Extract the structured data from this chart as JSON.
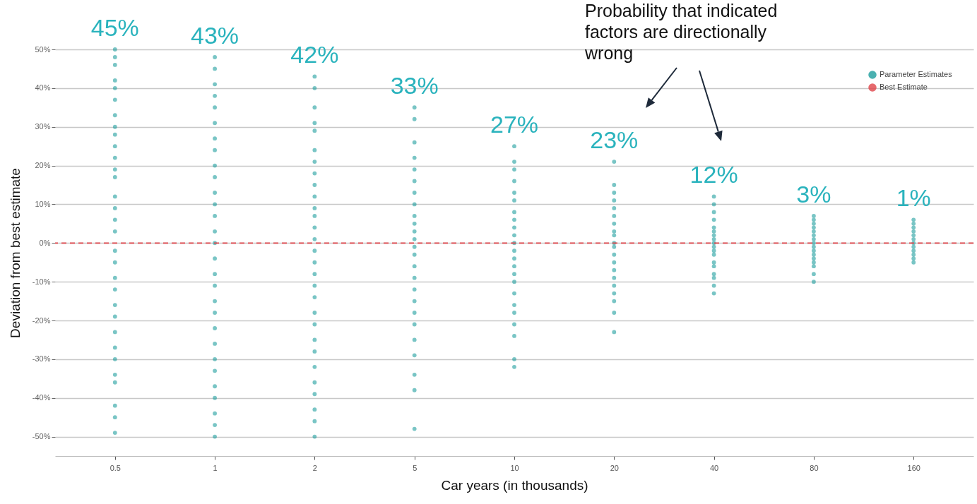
{
  "chart_data": {
    "type": "scatter",
    "xlabel": "Car years (in thousands)",
    "ylabel": "Deviation from best estimate",
    "categories": [
      "0.5",
      "1",
      "2",
      "5",
      "10",
      "20",
      "40",
      "80",
      "160"
    ],
    "ylim": [
      -55,
      50
    ],
    "yticks": [
      {
        "value": -50,
        "label": "-50%"
      },
      {
        "value": -40,
        "label": "-40%"
      },
      {
        "value": -30,
        "label": "-30%"
      },
      {
        "value": -20,
        "label": "-20%"
      },
      {
        "value": -10,
        "label": "-10%"
      },
      {
        "value": 0,
        "label": "0%"
      },
      {
        "value": 10,
        "label": "10%"
      },
      {
        "value": 20,
        "label": "20%"
      },
      {
        "value": 30,
        "label": "30%"
      },
      {
        "value": 40,
        "label": "40%"
      },
      {
        "value": 50,
        "label": "50%"
      }
    ],
    "grid": "y",
    "legend": "top right",
    "marker": "circle",
    "series": [
      {
        "name": "Parameter Estimates",
        "color": "#1f9e9e",
        "x": [
          "0.5",
          "0.5",
          "0.5",
          "0.5",
          "0.5",
          "0.5",
          "0.5",
          "0.5",
          "0.5",
          "0.5",
          "0.5",
          "0.5",
          "0.5",
          "0.5",
          "0.5",
          "0.5",
          "0.5",
          "0.5",
          "0.5",
          "0.5",
          "0.5",
          "0.5",
          "0.5",
          "0.5",
          "0.5",
          "0.5",
          "0.5",
          "0.5",
          "0.5",
          "0.5",
          "0.5",
          "1",
          "1",
          "1",
          "1",
          "1",
          "1",
          "1",
          "1",
          "1",
          "1",
          "1",
          "1",
          "1",
          "1",
          "1",
          "1",
          "1",
          "1",
          "1",
          "1",
          "1",
          "1",
          "1",
          "1",
          "1",
          "1",
          "1",
          "1",
          "1",
          "2",
          "2",
          "2",
          "2",
          "2",
          "2",
          "2",
          "2",
          "2",
          "2",
          "2",
          "2",
          "2",
          "2",
          "2",
          "2",
          "2",
          "2",
          "2",
          "2",
          "2",
          "2",
          "2",
          "2",
          "2",
          "2",
          "2",
          "2",
          "2",
          "5",
          "5",
          "5",
          "5",
          "5",
          "5",
          "5",
          "5",
          "5",
          "5",
          "5",
          "5",
          "5",
          "5",
          "5",
          "5",
          "5",
          "5",
          "5",
          "5",
          "5",
          "5",
          "5",
          "5",
          "5",
          "10",
          "10",
          "10",
          "10",
          "10",
          "10",
          "10",
          "10",
          "10",
          "10",
          "10",
          "10",
          "10",
          "10",
          "10",
          "10",
          "10",
          "10",
          "10",
          "10",
          "10",
          "10",
          "10",
          "20",
          "20",
          "20",
          "20",
          "20",
          "20",
          "20",
          "20",
          "20",
          "20",
          "20",
          "20",
          "20",
          "20",
          "20",
          "20",
          "20",
          "20",
          "20",
          "20",
          "40",
          "40",
          "40",
          "40",
          "40",
          "40",
          "40",
          "40",
          "40",
          "40",
          "40",
          "40",
          "40",
          "40",
          "40",
          "40",
          "40",
          "40",
          "80",
          "80",
          "80",
          "80",
          "80",
          "80",
          "80",
          "80",
          "80",
          "80",
          "80",
          "80",
          "80",
          "80",
          "80",
          "80",
          "160",
          "160",
          "160",
          "160",
          "160",
          "160",
          "160",
          "160",
          "160",
          "160",
          "160",
          "160"
        ],
        "values": [
          50,
          48,
          46,
          42,
          40,
          37,
          33,
          30,
          28,
          25,
          22,
          19,
          17,
          12,
          9,
          6,
          3,
          -2,
          -5,
          -9,
          -12,
          -16,
          -19,
          -23,
          -27,
          -30,
          -34,
          -36,
          -42,
          -45,
          -49,
          48,
          45,
          41,
          38,
          35,
          31,
          27,
          24,
          20,
          17,
          13,
          10,
          7,
          3,
          0,
          -4,
          -8,
          -11,
          -15,
          -18,
          -22,
          -26,
          -30,
          -33,
          -37,
          -40,
          -44,
          -47,
          -50,
          43,
          40,
          35,
          31,
          29,
          24,
          21,
          18,
          15,
          12,
          9,
          7,
          4,
          1,
          -2,
          -5,
          -8,
          -11,
          -14,
          -18,
          -21,
          -25,
          -28,
          -32,
          -36,
          -39,
          -43,
          -46,
          -50,
          35,
          32,
          26,
          22,
          19,
          16,
          13,
          10,
          7,
          5,
          3,
          1,
          -1,
          -3,
          -6,
          -9,
          -12,
          -15,
          -18,
          -21,
          -25,
          -29,
          -34,
          -38,
          -48,
          25,
          21,
          19,
          16,
          13,
          11,
          8,
          6,
          4,
          2,
          0,
          -2,
          -4,
          -6,
          -8,
          -10,
          -13,
          -16,
          -18,
          -21,
          -24,
          -30,
          -32,
          21,
          15,
          13,
          11,
          9,
          7,
          5,
          3,
          2,
          0,
          -1,
          -3,
          -5,
          -7,
          -9,
          -11,
          -13,
          -15,
          -18,
          -23,
          12,
          10,
          8,
          6,
          4,
          3,
          2,
          1,
          0,
          -1,
          -2,
          -3,
          -5,
          -6,
          -8,
          -9,
          -11,
          -13,
          7,
          6,
          5,
          4,
          3,
          2,
          1,
          0,
          -1,
          -2,
          -3,
          -4,
          -5,
          -6,
          -8,
          -10,
          6,
          5,
          4,
          3,
          2,
          1,
          0,
          -1,
          -2,
          -3,
          -4,
          -5
        ]
      }
    ],
    "ref_lines": [
      {
        "axis": "y",
        "value": 0,
        "label": "Best Estimate",
        "color": "#e0454a",
        "line_style": "dashed"
      }
    ],
    "annotations": [
      "45%",
      "43%",
      "42%",
      "33%",
      "27%",
      "23%",
      "12%",
      "3%",
      "1%",
      "Probability that indicated factors are directionally wrong"
    ]
  }
}
